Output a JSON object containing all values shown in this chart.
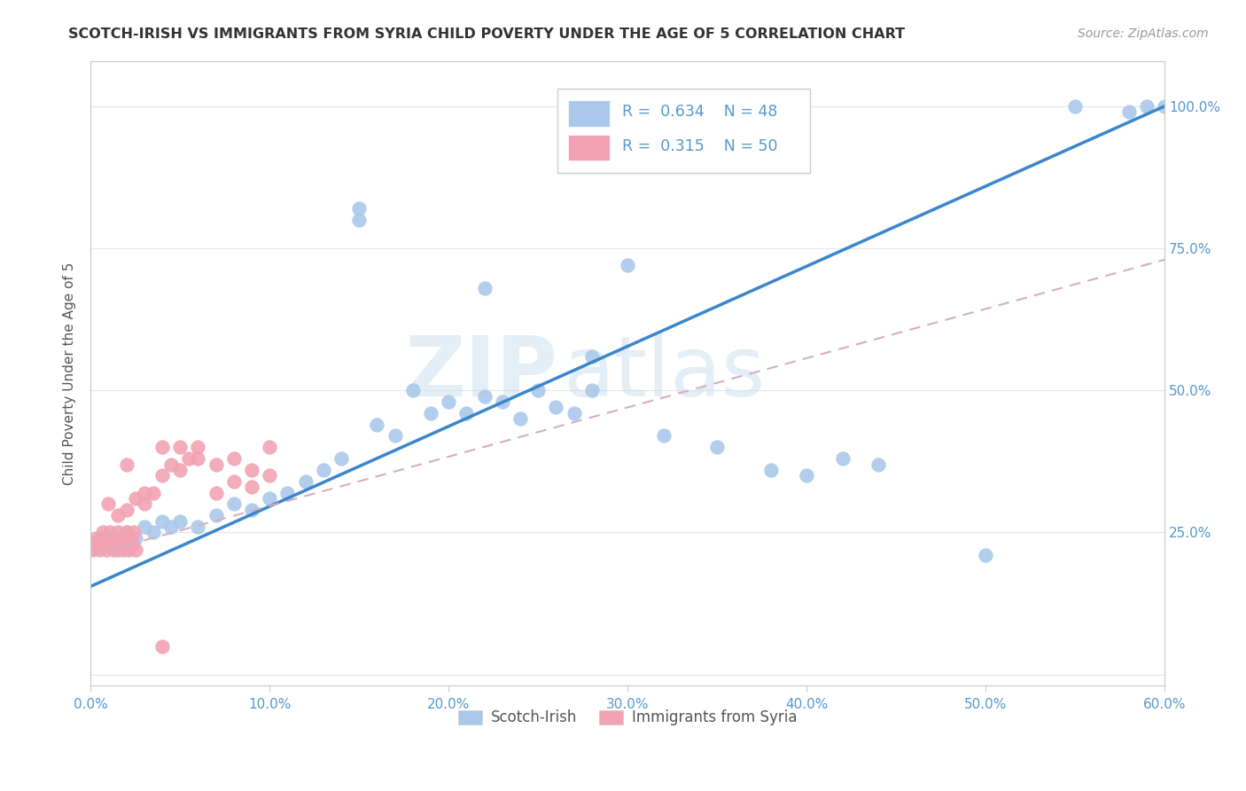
{
  "title": "SCOTCH-IRISH VS IMMIGRANTS FROM SYRIA CHILD POVERTY UNDER THE AGE OF 5 CORRELATION CHART",
  "source": "Source: ZipAtlas.com",
  "ylabel": "Child Poverty Under the Age of 5",
  "xlim": [
    0.0,
    0.6
  ],
  "ylim": [
    -0.02,
    1.08
  ],
  "watermark_zip": "ZIP",
  "watermark_atlas": "atlas",
  "legend_r1": "0.634",
  "legend_n1": "48",
  "legend_r2": "0.315",
  "legend_n2": "50",
  "scotch_irish_color": "#aac9ea",
  "syria_color": "#f2a3b3",
  "line_blue": "#3a86cc",
  "line_pink_dashed": "#d4b0c0",
  "background_color": "#ffffff",
  "grid_color": "#e5e5e5",
  "tick_color": "#5599cc",
  "title_color": "#333333",
  "source_color": "#999999",
  "ylabel_color": "#555555",
  "si_x": [
    0.005,
    0.01,
    0.015,
    0.02,
    0.025,
    0.03,
    0.035,
    0.04,
    0.045,
    0.05,
    0.06,
    0.07,
    0.08,
    0.09,
    0.1,
    0.11,
    0.12,
    0.13,
    0.14,
    0.15,
    0.16,
    0.17,
    0.18,
    0.19,
    0.2,
    0.21,
    0.22,
    0.23,
    0.24,
    0.25,
    0.26,
    0.27,
    0.28,
    0.3,
    0.32,
    0.35,
    0.38,
    0.42,
    0.44,
    0.5,
    0.55,
    0.58,
    0.59,
    0.6,
    0.15,
    0.22,
    0.28,
    0.4
  ],
  "si_y": [
    0.23,
    0.24,
    0.22,
    0.25,
    0.24,
    0.26,
    0.25,
    0.27,
    0.26,
    0.27,
    0.26,
    0.28,
    0.3,
    0.29,
    0.31,
    0.32,
    0.34,
    0.36,
    0.38,
    0.82,
    0.44,
    0.42,
    0.5,
    0.46,
    0.48,
    0.46,
    0.49,
    0.48,
    0.45,
    0.5,
    0.47,
    0.46,
    0.5,
    0.72,
    0.42,
    0.4,
    0.36,
    0.38,
    0.37,
    0.21,
    1.0,
    0.99,
    1.0,
    1.0,
    0.8,
    0.68,
    0.56,
    0.35
  ],
  "sy_x": [
    0.001,
    0.002,
    0.003,
    0.004,
    0.005,
    0.006,
    0.007,
    0.008,
    0.009,
    0.01,
    0.011,
    0.012,
    0.013,
    0.014,
    0.015,
    0.016,
    0.017,
    0.018,
    0.019,
    0.02,
    0.021,
    0.022,
    0.023,
    0.024,
    0.025,
    0.01,
    0.015,
    0.02,
    0.025,
    0.03,
    0.035,
    0.04,
    0.045,
    0.05,
    0.055,
    0.06,
    0.07,
    0.08,
    0.09,
    0.1,
    0.02,
    0.03,
    0.04,
    0.05,
    0.06,
    0.07,
    0.08,
    0.09,
    0.1,
    0.04
  ],
  "sy_y": [
    0.22,
    0.23,
    0.24,
    0.23,
    0.22,
    0.24,
    0.25,
    0.23,
    0.22,
    0.24,
    0.25,
    0.23,
    0.22,
    0.24,
    0.25,
    0.23,
    0.24,
    0.22,
    0.23,
    0.25,
    0.22,
    0.24,
    0.23,
    0.25,
    0.22,
    0.3,
    0.28,
    0.29,
    0.31,
    0.3,
    0.32,
    0.35,
    0.37,
    0.36,
    0.38,
    0.4,
    0.37,
    0.34,
    0.33,
    0.35,
    0.37,
    0.32,
    0.4,
    0.4,
    0.38,
    0.32,
    0.38,
    0.36,
    0.4,
    0.05
  ],
  "blue_line_x": [
    0.0,
    0.6
  ],
  "blue_line_y": [
    0.155,
    1.0
  ],
  "pink_line_x": [
    0.0,
    0.6
  ],
  "pink_line_y": [
    0.21,
    0.73
  ]
}
